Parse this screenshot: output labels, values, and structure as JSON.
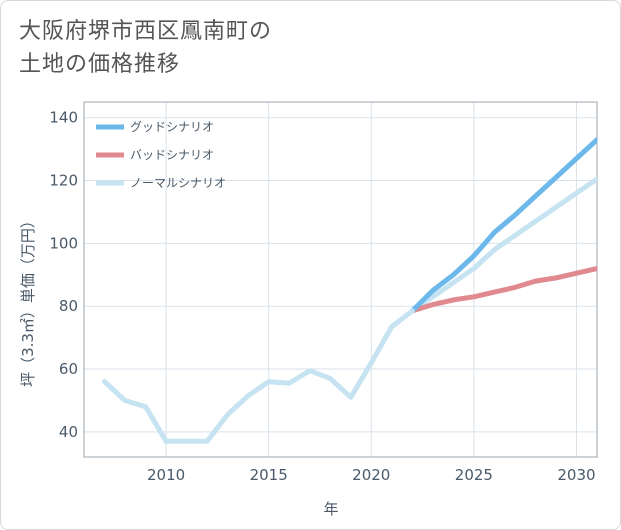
{
  "title_line1": "大阪府堺市西区鳳南町の",
  "title_line2": "土地の価格推移",
  "chart_data": {
    "type": "line",
    "xlabel": "年",
    "ylabel": "坪（3.3㎡）単価（万円）",
    "xlim": [
      2006,
      2031
    ],
    "ylim": [
      32,
      145
    ],
    "xticks": [
      2010,
      2015,
      2020,
      2025,
      2030
    ],
    "yticks": [
      40,
      60,
      80,
      100,
      120,
      140
    ],
    "grid": true,
    "legend_position": "top-left",
    "history": {
      "color": "#c5e3f0",
      "x": [
        2007,
        2008,
        2009,
        2010,
        2011,
        2012,
        2013,
        2014,
        2015,
        2016,
        2017,
        2018,
        2019,
        2020,
        2021,
        2022
      ],
      "values": [
        56,
        50,
        48,
        37,
        37,
        37,
        45.5,
        51.5,
        56,
        55.5,
        59.5,
        57,
        51,
        62,
        73.5,
        78.5
      ]
    },
    "series": [
      {
        "name": "グッドシナリオ",
        "color": "#6cb8ea",
        "x": [
          2022,
          2023,
          2024,
          2025,
          2026,
          2027,
          2028,
          2029,
          2030,
          2031
        ],
        "values": [
          78.5,
          85,
          90,
          96,
          103.5,
          109,
          115,
          121,
          127,
          133
        ]
      },
      {
        "name": "バッドシナリオ",
        "color": "#e08a90",
        "x": [
          2022,
          2023,
          2024,
          2025,
          2026,
          2027,
          2028,
          2029,
          2030,
          2031
        ],
        "values": [
          78.5,
          80.5,
          82,
          83,
          84.5,
          86,
          88,
          89,
          90.5,
          92
        ]
      },
      {
        "name": "ノーマルシナリオ",
        "color": "#c5e3f0",
        "x": [
          2022,
          2023,
          2024,
          2025,
          2026,
          2027,
          2028,
          2029,
          2030,
          2031
        ],
        "values": [
          78.5,
          83,
          87.5,
          92,
          98,
          102.5,
          107,
          111.5,
          116,
          120.5
        ]
      }
    ]
  }
}
